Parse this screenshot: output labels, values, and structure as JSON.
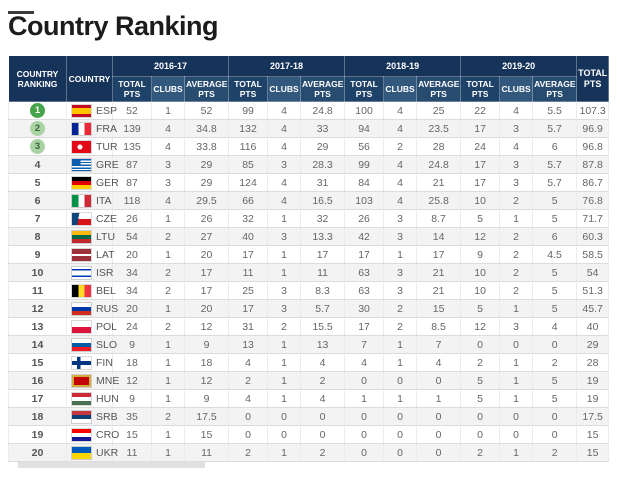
{
  "page": {
    "title": "Country Ranking"
  },
  "colors": {
    "header_bg": "#16345a",
    "header_total_bg": "#1e4268",
    "header_clubs_bg": "#33587d",
    "header_avg_bg": "#284b70",
    "rank1_badge": "#46a44b",
    "rank23_badge": "#a9d3a3",
    "row_alt_bg": "#f3f3f3"
  },
  "table": {
    "columns": {
      "ranking": "COUNTRY RANKING",
      "country": "COUNTRY",
      "seasons": [
        "2016-17",
        "2017-18",
        "2018-19",
        "2019-20"
      ],
      "sub": [
        "TOTAL PTS",
        "CLUBS",
        "AVERAGE PTS"
      ],
      "grand_total": "TOTAL PTS"
    },
    "rows": [
      {
        "rank": "1",
        "badge": "top1",
        "code": "ESP",
        "flag_name": "flag-spain",
        "flag_css": "linear-gradient(180deg,#c60b1e 0 25%,#ffc400 25% 75%,#c60b1e 75% 100%)",
        "seasons": [
          [
            "52",
            "1",
            "52"
          ],
          [
            "99",
            "4",
            "24.8"
          ],
          [
            "100",
            "4",
            "25"
          ],
          [
            "22",
            "4",
            "5.5"
          ]
        ],
        "total": "107.3"
      },
      {
        "rank": "2",
        "badge": "top3",
        "code": "FRA",
        "flag_name": "flag-france",
        "flag_css": "linear-gradient(90deg,#002395 0 33%,#ffffff 33% 66%,#ed2939 66% 100%)",
        "seasons": [
          [
            "139",
            "4",
            "34.8"
          ],
          [
            "132",
            "4",
            "33"
          ],
          [
            "94",
            "4",
            "23.5"
          ],
          [
            "17",
            "3",
            "5.7"
          ]
        ],
        "total": "96.9"
      },
      {
        "rank": "3",
        "badge": "top3",
        "code": "TUR",
        "flag_name": "flag-turkey",
        "flag_css": "radial-gradient(circle at 42% 50%,#ffffff 0 2.2px,rgba(0,0,0,0) 2.8px),linear-gradient(#e30a17,#e30a17)",
        "seasons": [
          [
            "135",
            "4",
            "33.8"
          ],
          [
            "116",
            "4",
            "29"
          ],
          [
            "56",
            "2",
            "28"
          ],
          [
            "24",
            "4",
            "6"
          ]
        ],
        "total": "96.8"
      },
      {
        "rank": "4",
        "badge": "none",
        "code": "GRE",
        "flag_name": "flag-greece",
        "flag_css": "linear-gradient(#0d5eaf,#0d5eaf) left top/45% 55% no-repeat,repeating-linear-gradient(180deg,#0d5eaf 0 1.4px,#ffffff 1.4px 2.8px)",
        "seasons": [
          [
            "87",
            "3",
            "29"
          ],
          [
            "85",
            "3",
            "28.3"
          ],
          [
            "99",
            "4",
            "24.8"
          ],
          [
            "17",
            "3",
            "5.7"
          ]
        ],
        "total": "87.8"
      },
      {
        "rank": "5",
        "badge": "none",
        "code": "GER",
        "flag_name": "flag-germany",
        "flag_css": "linear-gradient(180deg,#000000 0 33%,#dd0000 33% 66%,#ffce00 66% 100%)",
        "seasons": [
          [
            "87",
            "3",
            "29"
          ],
          [
            "124",
            "4",
            "31"
          ],
          [
            "84",
            "4",
            "21"
          ],
          [
            "17",
            "3",
            "5.7"
          ]
        ],
        "total": "86.7"
      },
      {
        "rank": "6",
        "badge": "none",
        "code": "ITA",
        "flag_name": "flag-italy",
        "flag_css": "linear-gradient(90deg,#009246 0 33%,#ffffff 33% 66%,#ce2b37 66% 100%)",
        "seasons": [
          [
            "118",
            "4",
            "29.5"
          ],
          [
            "66",
            "4",
            "16.5"
          ],
          [
            "103",
            "4",
            "25.8"
          ],
          [
            "10",
            "2",
            "5"
          ]
        ],
        "total": "76.8"
      },
      {
        "rank": "7",
        "badge": "none",
        "code": "CZE",
        "flag_name": "flag-czechia",
        "flag_css": "linear-gradient(100deg,#11457e 0 35%,rgba(0,0,0,0) 35%),linear-gradient(180deg,#ffffff 0 50%,#d7141a 50% 100%)",
        "seasons": [
          [
            "26",
            "1",
            "26"
          ],
          [
            "32",
            "1",
            "32"
          ],
          [
            "26",
            "3",
            "8.7"
          ],
          [
            "5",
            "1",
            "5"
          ]
        ],
        "total": "71.7"
      },
      {
        "rank": "8",
        "badge": "none",
        "code": "LTU",
        "flag_name": "flag-lithuania",
        "flag_css": "linear-gradient(180deg,#fdb913 0 33%,#006a44 33% 66%,#c1272d 66% 100%)",
        "seasons": [
          [
            "54",
            "2",
            "27"
          ],
          [
            "40",
            "3",
            "13.3"
          ],
          [
            "42",
            "3",
            "14"
          ],
          [
            "12",
            "2",
            "6"
          ]
        ],
        "total": "60.3"
      },
      {
        "rank": "9",
        "badge": "none",
        "code": "LAT",
        "flag_name": "flag-latvia",
        "flag_css": "linear-gradient(180deg,#9e3039 0 40%,#ffffff 40% 60%,#9e3039 60% 100%)",
        "seasons": [
          [
            "20",
            "1",
            "20"
          ],
          [
            "17",
            "1",
            "17"
          ],
          [
            "17",
            "1",
            "17"
          ],
          [
            "9",
            "2",
            "4.5"
          ]
        ],
        "total": "58.5"
      },
      {
        "rank": "10",
        "badge": "none",
        "code": "ISR",
        "flag_name": "flag-israel",
        "flag_css": "linear-gradient(180deg,#ffffff 0 15%,#0038b8 15% 30%,#ffffff 30% 70%,#0038b8 70% 85%,#ffffff 85% 100%)",
        "seasons": [
          [
            "34",
            "2",
            "17"
          ],
          [
            "11",
            "1",
            "11"
          ],
          [
            "63",
            "3",
            "21"
          ],
          [
            "10",
            "2",
            "5"
          ]
        ],
        "total": "54"
      },
      {
        "rank": "11",
        "badge": "none",
        "code": "BEL",
        "flag_name": "flag-belgium",
        "flag_css": "linear-gradient(90deg,#000000 0 33%,#fdda24 33% 66%,#ef3340 66% 100%)",
        "seasons": [
          [
            "34",
            "2",
            "17"
          ],
          [
            "25",
            "3",
            "8.3"
          ],
          [
            "63",
            "3",
            "21"
          ],
          [
            "10",
            "2",
            "5"
          ]
        ],
        "total": "51.3"
      },
      {
        "rank": "12",
        "badge": "none",
        "code": "RUS",
        "flag_name": "flag-russia",
        "flag_css": "linear-gradient(180deg,#ffffff 0 33%,#0039a6 33% 66%,#d52b1e 66% 100%)",
        "seasons": [
          [
            "20",
            "1",
            "20"
          ],
          [
            "17",
            "3",
            "5.7"
          ],
          [
            "30",
            "2",
            "15"
          ],
          [
            "5",
            "1",
            "5"
          ]
        ],
        "total": "45.7"
      },
      {
        "rank": "13",
        "badge": "none",
        "code": "POL",
        "flag_name": "flag-poland",
        "flag_css": "linear-gradient(180deg,#ffffff 0 50%,#dc143c 50% 100%)",
        "seasons": [
          [
            "24",
            "2",
            "12"
          ],
          [
            "31",
            "2",
            "15.5"
          ],
          [
            "17",
            "2",
            "8.5"
          ],
          [
            "12",
            "3",
            "4"
          ]
        ],
        "total": "40"
      },
      {
        "rank": "14",
        "badge": "none",
        "code": "SLO",
        "flag_name": "flag-slovenia",
        "flag_css": "linear-gradient(180deg,#ffffff 0 33%,#005da4 33% 66%,#ed1c24 66% 100%)",
        "seasons": [
          [
            "9",
            "1",
            "9"
          ],
          [
            "13",
            "1",
            "13"
          ],
          [
            "7",
            "1",
            "7"
          ],
          [
            "0",
            "0",
            "0"
          ]
        ],
        "total": "29"
      },
      {
        "rank": "15",
        "badge": "none",
        "code": "FIN",
        "flag_name": "flag-finland",
        "flag_css": "linear-gradient(90deg,rgba(0,0,0,0) 0 25%,#003580 25% 45%,rgba(0,0,0,0) 45%),linear-gradient(180deg,#ffffff 0 35%,#003580 35% 65%,#ffffff 65% 100%)",
        "seasons": [
          [
            "18",
            "1",
            "18"
          ],
          [
            "4",
            "1",
            "4"
          ],
          [
            "4",
            "1",
            "4"
          ],
          [
            "2",
            "1",
            "2"
          ]
        ],
        "total": "28"
      },
      {
        "rank": "16",
        "badge": "none",
        "code": "MNE",
        "flag_name": "flag-montenegro",
        "flag_css": "linear-gradient(#c40308,#c40308) 2px 2px/15px 8px no-repeat,linear-gradient(#d3ae3b,#d3ae3b)",
        "seasons": [
          [
            "12",
            "1",
            "12"
          ],
          [
            "2",
            "1",
            "2"
          ],
          [
            "0",
            "0",
            "0"
          ],
          [
            "5",
            "1",
            "5"
          ]
        ],
        "total": "19"
      },
      {
        "rank": "17",
        "badge": "none",
        "code": "HUN",
        "flag_name": "flag-hungary",
        "flag_css": "linear-gradient(180deg,#ce2939 0 33%,#ffffff 33% 66%,#477050 66% 100%)",
        "seasons": [
          [
            "9",
            "1",
            "9"
          ],
          [
            "4",
            "1",
            "4"
          ],
          [
            "1",
            "1",
            "1"
          ],
          [
            "5",
            "1",
            "5"
          ]
        ],
        "total": "19"
      },
      {
        "rank": "18",
        "badge": "none",
        "code": "SRB",
        "flag_name": "flag-serbia",
        "flag_css": "linear-gradient(180deg,#c6363c 0 33%,#0c4076 33% 66%,#ffffff 66% 100%)",
        "seasons": [
          [
            "35",
            "2",
            "17.5"
          ],
          [
            "0",
            "0",
            "0"
          ],
          [
            "0",
            "0",
            "0"
          ],
          [
            "0",
            "0",
            "0"
          ]
        ],
        "total": "17.5"
      },
      {
        "rank": "19",
        "badge": "none",
        "code": "CRO",
        "flag_name": "flag-croatia",
        "flag_css": "linear-gradient(180deg,#ff0000 0 33%,#ffffff 33% 66%,#171796 66% 100%)",
        "seasons": [
          [
            "15",
            "1",
            "15"
          ],
          [
            "0",
            "0",
            "0"
          ],
          [
            "0",
            "0",
            "0"
          ],
          [
            "0",
            "0",
            "0"
          ]
        ],
        "total": "15"
      },
      {
        "rank": "20",
        "badge": "none",
        "code": "UKR",
        "flag_name": "flag-ukraine",
        "flag_css": "linear-gradient(180deg,#005bbb 0 50%,#ffd500 50% 100%)",
        "seasons": [
          [
            "11",
            "1",
            "11"
          ],
          [
            "2",
            "1",
            "2"
          ],
          [
            "0",
            "0",
            "0"
          ],
          [
            "2",
            "1",
            "2"
          ]
        ],
        "total": "15"
      }
    ]
  }
}
